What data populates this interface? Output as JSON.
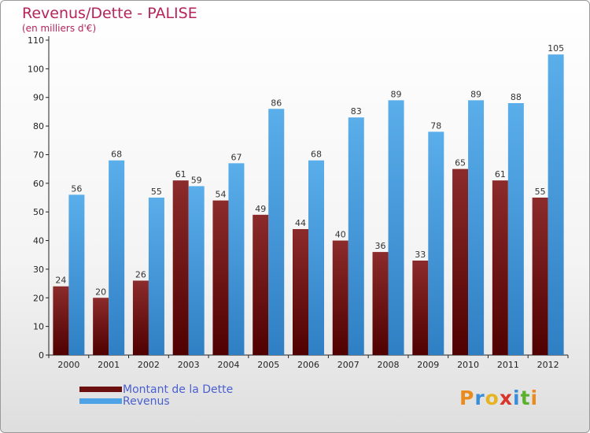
{
  "header": {
    "title": "Revenus/Dette - PALISE",
    "subtitle": "(en milliers d'€)"
  },
  "logo": {
    "text": "Proxiti"
  },
  "colors": {
    "debt": "#7a1515",
    "revenue": "#4ea3e6",
    "title": "#b5245a",
    "legend_text": "#4a5fd0"
  },
  "chart_data": {
    "type": "bar",
    "categories": [
      "2000",
      "2001",
      "2002",
      "2003",
      "2004",
      "2005",
      "2006",
      "2007",
      "2008",
      "2009",
      "2010",
      "2011",
      "2012"
    ],
    "series": [
      {
        "name": "Montant de la Dette",
        "values": [
          24,
          20,
          26,
          61,
          54,
          49,
          44,
          40,
          36,
          33,
          65,
          61,
          55
        ]
      },
      {
        "name": "Revenus",
        "values": [
          56,
          68,
          55,
          59,
          67,
          86,
          68,
          83,
          89,
          78,
          89,
          88,
          105
        ]
      }
    ],
    "yticks": [
      0,
      10,
      20,
      30,
      40,
      50,
      60,
      70,
      80,
      90,
      100,
      110
    ],
    "ylim": [
      0,
      110
    ],
    "grid": false,
    "legend_position": "bottom-left"
  }
}
